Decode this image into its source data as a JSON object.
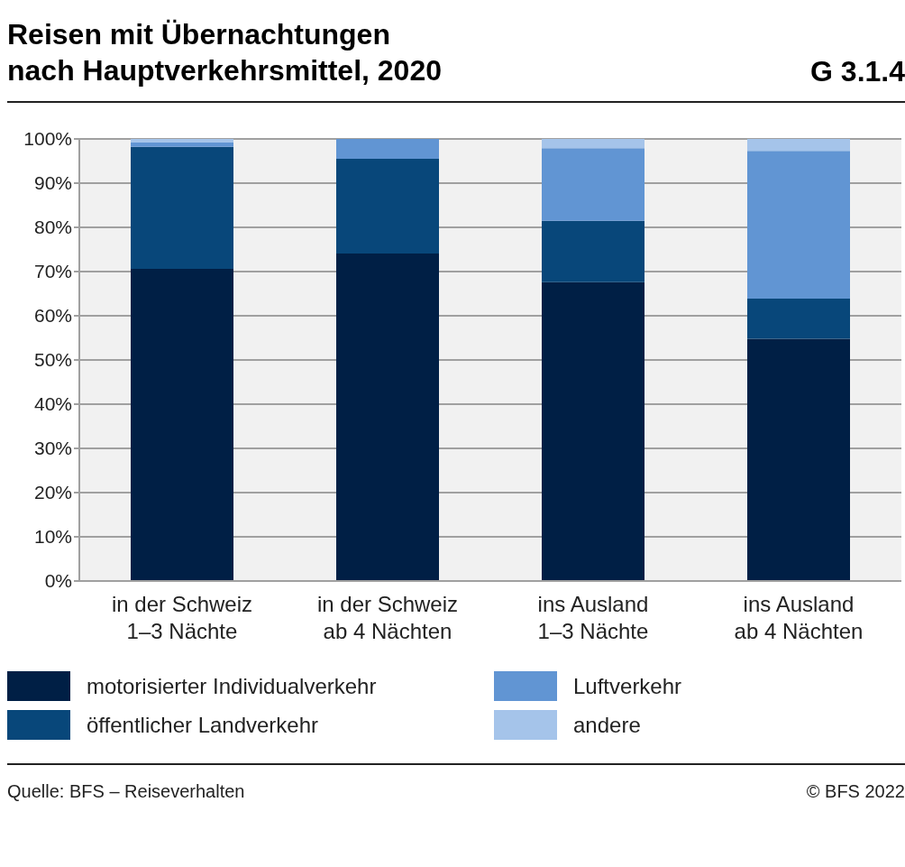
{
  "chart_data": {
    "type": "bar",
    "title": "Reisen mit Übernachtungen\nnach Hauptverkehrsmittel, 2020",
    "annotations": [
      "G 3.1.4",
      "Quelle: BFS – Reiseverhalten",
      "© BFS 2022"
    ],
    "categories": [
      "in der Schweiz\n1–3 Nächte",
      "in der Schweiz\nab 4 Nächten",
      "ins Ausland\n1–3 Nächte",
      "ins Ausland\nab 4 Nächten"
    ],
    "stacked": true,
    "ylim": [
      0,
      100
    ],
    "yticks": [
      {
        "value": 0,
        "label": "0%"
      },
      {
        "value": 10,
        "label": "10%"
      },
      {
        "value": 20,
        "label": "20%"
      },
      {
        "value": 30,
        "label": "30%"
      },
      {
        "value": 40,
        "label": "40%"
      },
      {
        "value": 50,
        "label": "50%"
      },
      {
        "value": 60,
        "label": "60%"
      },
      {
        "value": 70,
        "label": "70%"
      },
      {
        "value": 80,
        "label": "80%"
      },
      {
        "value": 90,
        "label": "90%"
      },
      {
        "value": 100,
        "label": "100%"
      }
    ],
    "grid": "y",
    "legend": "bottom",
    "series": [
      {
        "name": "motorisierter Individualverkehr",
        "color": "#001f45",
        "values": [
          70.6,
          74.1,
          67.6,
          54.8
        ]
      },
      {
        "name": "öffentlicher Landverkehr",
        "color": "#08477a",
        "values": [
          27.6,
          21.4,
          13.9,
          9.1
        ]
      },
      {
        "name": "Luftverkehr",
        "color": "#6195d3",
        "values": [
          1.0,
          4.5,
          16.4,
          33.4
        ]
      },
      {
        "name": "andere",
        "color": "#a5c4ea",
        "values": [
          0.8,
          0,
          2.1,
          2.7
        ]
      }
    ]
  }
}
